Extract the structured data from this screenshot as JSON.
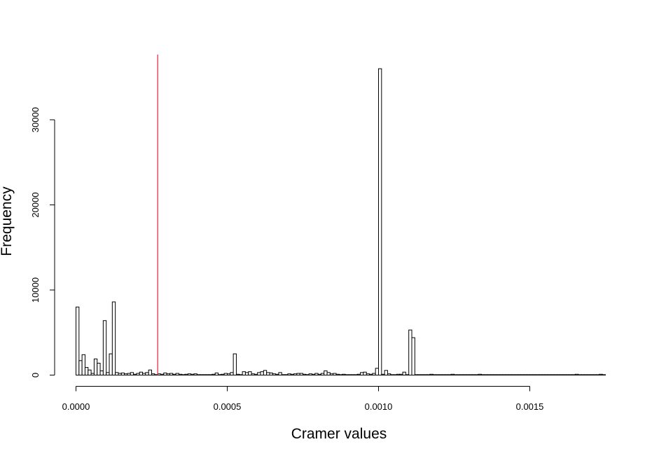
{
  "chart_data": {
    "type": "bar",
    "title": "",
    "xlabel": "Cramer values",
    "ylabel": "Frequency",
    "xlim": [
      0,
      0.00175
    ],
    "ylim": [
      0,
      37500
    ],
    "bin_width": 1e-05,
    "x_ticks": [
      {
        "value": 0,
        "label": "0.0000"
      },
      {
        "value": 0.0005,
        "label": "0.0005"
      },
      {
        "value": 0.001,
        "label": "0.0010"
      },
      {
        "value": 0.0015,
        "label": "0.0015"
      }
    ],
    "y_ticks": [
      {
        "value": 0,
        "label": "0"
      },
      {
        "value": 10000,
        "label": "10000"
      },
      {
        "value": 20000,
        "label": "20000"
      },
      {
        "value": 30000,
        "label": "30000"
      }
    ],
    "reference_line": {
      "x": 0.00027,
      "color": "#e8213a"
    },
    "bins_start": [
      0,
      1e-05,
      2e-05,
      3e-05,
      4e-05,
      5e-05,
      6e-05,
      7e-05,
      8e-05,
      9e-05,
      0.0001,
      0.00011,
      0.00012,
      0.00013,
      0.00014,
      0.00015,
      0.00016,
      0.00017,
      0.00018,
      0.00019,
      0.0002,
      0.00021,
      0.00022,
      0.00023,
      0.00024,
      0.00025,
      0.00026,
      0.00027,
      0.00028,
      0.00029,
      0.0003,
      0.00031,
      0.00032,
      0.00033,
      0.00034,
      0.00035,
      0.00036,
      0.00037,
      0.00038,
      0.00039,
      0.0004,
      0.00041,
      0.00042,
      0.00043,
      0.00044,
      0.00045,
      0.00046,
      0.00047,
      0.00048,
      0.00049,
      0.0005,
      0.00051,
      0.00052,
      0.00053,
      0.00054,
      0.00055,
      0.00056,
      0.00057,
      0.00058,
      0.00059,
      0.0006,
      0.00061,
      0.00062,
      0.00063,
      0.00064,
      0.00065,
      0.00066,
      0.00067,
      0.00068,
      0.00069,
      0.0007,
      0.00071,
      0.00072,
      0.00073,
      0.00074,
      0.00075,
      0.00076,
      0.00077,
      0.00078,
      0.00079,
      0.0008,
      0.00081,
      0.00082,
      0.00083,
      0.00084,
      0.00085,
      0.00086,
      0.00087,
      0.00088,
      0.00089,
      0.0009,
      0.00091,
      0.00092,
      0.00093,
      0.00094,
      0.00095,
      0.00096,
      0.00097,
      0.00098,
      0.00099,
      0.001,
      0.00101,
      0.00102,
      0.00103,
      0.00104,
      0.00105,
      0.00106,
      0.00107,
      0.00108,
      0.00109,
      0.0011,
      0.00111,
      0.00112,
      0.00113,
      0.00114,
      0.00115,
      0.00116,
      0.00117,
      0.00118,
      0.00119,
      0.0012,
      0.00121,
      0.00122,
      0.00123,
      0.00124,
      0.00125,
      0.00126,
      0.00127,
      0.00128,
      0.00129,
      0.0013,
      0.00131,
      0.00132,
      0.00133,
      0.00134,
      0.00135,
      0.00136,
      0.00137,
      0.00138,
      0.00139,
      0.0014,
      0.00141,
      0.00142,
      0.00143,
      0.00144,
      0.00145,
      0.00146,
      0.00147,
      0.00148,
      0.00149,
      0.0015,
      0.00151,
      0.00152,
      0.00153,
      0.00154,
      0.00155,
      0.00156,
      0.00157,
      0.00158,
      0.00159,
      0.0016,
      0.00161,
      0.00162,
      0.00163,
      0.00164,
      0.00165,
      0.00166,
      0.00167,
      0.00168,
      0.00169,
      0.0017,
      0.00171,
      0.00172,
      0.00173,
      0.00174
    ],
    "values": [
      8000,
      1700,
      2400,
      900,
      600,
      200,
      1900,
      1400,
      500,
      6400,
      300,
      2500,
      8600,
      300,
      200,
      250,
      150,
      200,
      300,
      100,
      200,
      350,
      200,
      300,
      600,
      150,
      50,
      150,
      100,
      250,
      150,
      200,
      100,
      200,
      100,
      50,
      100,
      150,
      100,
      150,
      50,
      50,
      50,
      50,
      50,
      100,
      250,
      50,
      100,
      200,
      150,
      300,
      2500,
      100,
      50,
      400,
      300,
      400,
      150,
      100,
      300,
      400,
      550,
      300,
      250,
      150,
      100,
      300,
      50,
      50,
      150,
      100,
      150,
      200,
      200,
      100,
      50,
      150,
      100,
      200,
      100,
      200,
      500,
      300,
      150,
      200,
      100,
      50,
      100,
      50,
      50,
      50,
      50,
      100,
      300,
      350,
      150,
      100,
      200,
      800,
      36000,
      100,
      550,
      150,
      50,
      50,
      100,
      100,
      350,
      50,
      5300,
      4400,
      50,
      50,
      50,
      50,
      50,
      100,
      50,
      50,
      50,
      50,
      50,
      50,
      100,
      50,
      50,
      50,
      50,
      50,
      50,
      50,
      50,
      100,
      50,
      50,
      50,
      50,
      50,
      50,
      50,
      50,
      50,
      50,
      50,
      50,
      50,
      50,
      50,
      50,
      50,
      50,
      50,
      50,
      50,
      50,
      50,
      50,
      50,
      50,
      50,
      50,
      50,
      50,
      50,
      100,
      50,
      50,
      50,
      50,
      50,
      50,
      50,
      100,
      50
    ]
  }
}
